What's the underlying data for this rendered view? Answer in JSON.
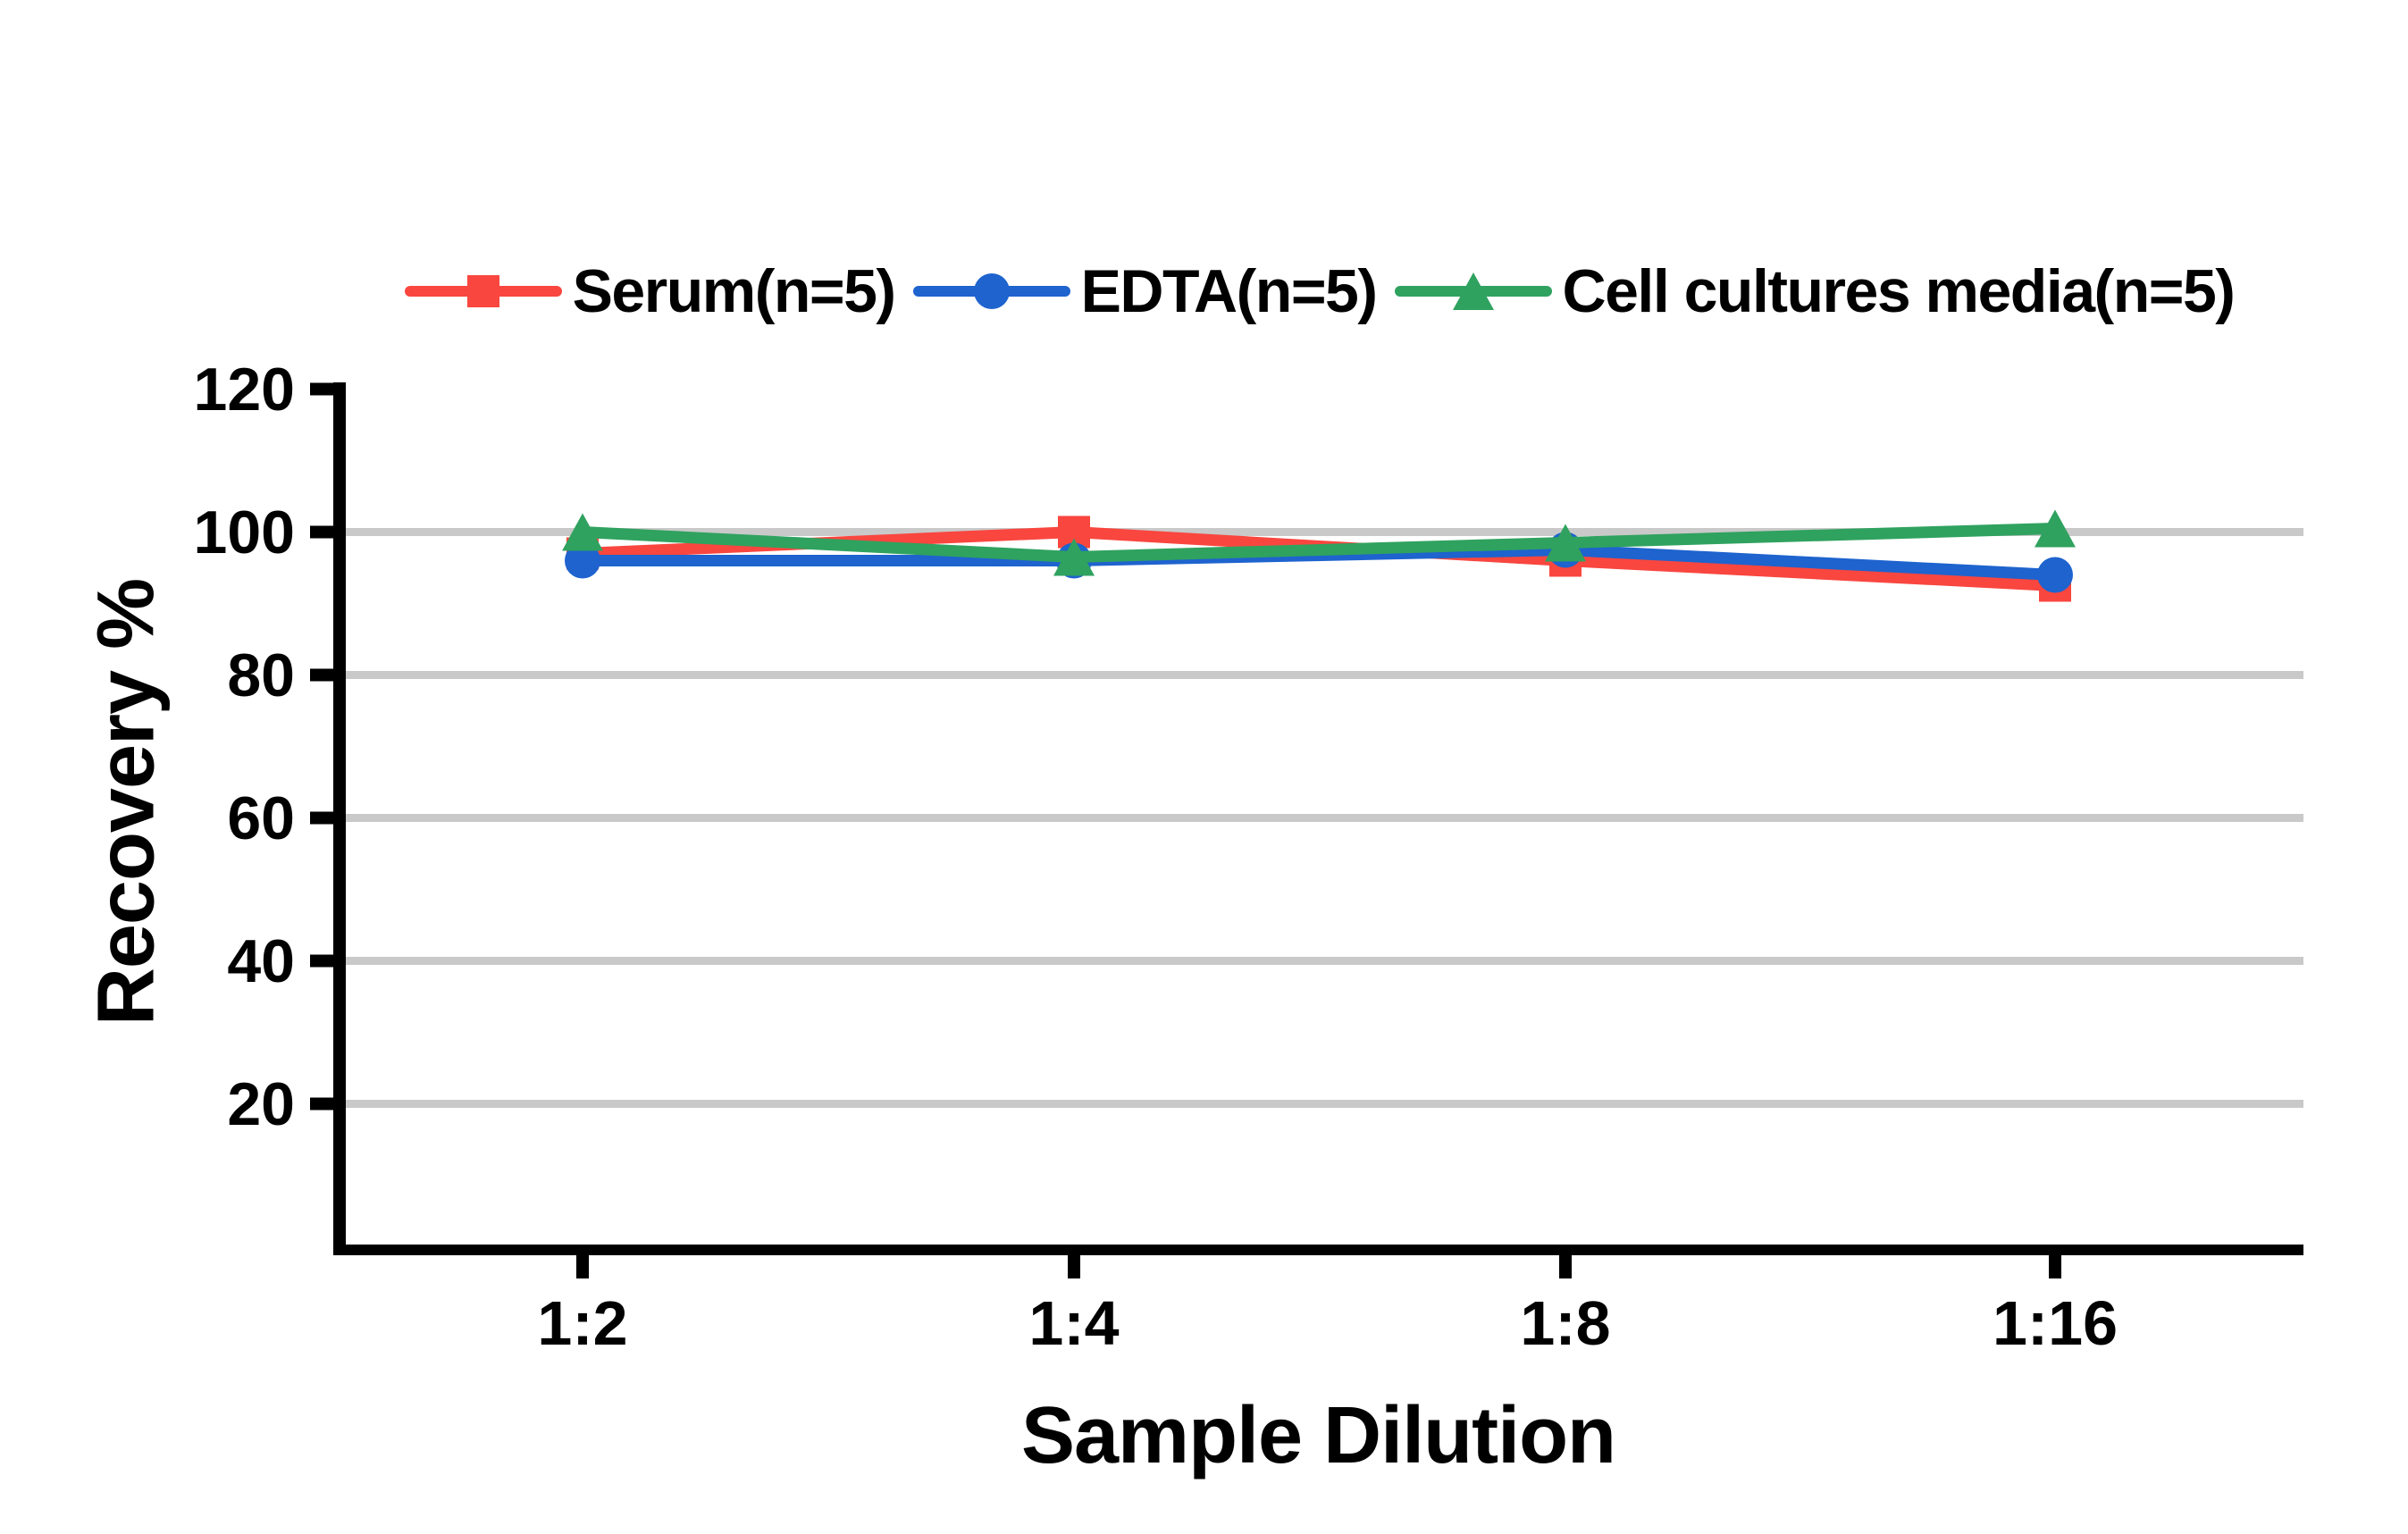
{
  "figure": {
    "x_axis_title": "Sample Dilution",
    "y_axis_title": "Recovery %"
  },
  "legend": {
    "items": [
      {
        "label": "Serum(n=5)",
        "marker": "square",
        "color": "#F9463F"
      },
      {
        "label": "EDTA(n=5)",
        "marker": "circle",
        "color": "#1E63CE"
      },
      {
        "label": "Cell cultures media(n=5)",
        "marker": "triangle",
        "color": "#2FA25F"
      }
    ]
  },
  "chart_data": {
    "type": "line",
    "title": "",
    "xlabel": "Sample Dilution",
    "ylabel": "Recovery %",
    "categories": [
      "1:2",
      "1:4",
      "1:8",
      "1:16"
    ],
    "series": [
      {
        "name": "Serum(n=5)",
        "marker": "square",
        "color": "#F9463F",
        "values": [
          97,
          100,
          96,
          92.5
        ]
      },
      {
        "name": "EDTA(n=5)",
        "marker": "circle",
        "color": "#1E63CE",
        "values": [
          96,
          96,
          97.5,
          94
        ]
      },
      {
        "name": "Cell cultures media(n=5)",
        "marker": "triangle",
        "color": "#2FA25F",
        "values": [
          100,
          96.5,
          98.5,
          100.5
        ]
      }
    ],
    "ylim": [
      0,
      120
    ],
    "y_ticks": [
      20,
      40,
      60,
      80,
      100,
      120
    ],
    "y_gridlines": [
      20,
      40,
      60,
      80,
      100
    ],
    "grid_on": true,
    "legend_position": "top"
  },
  "colors": {
    "background": "#ffffff",
    "axis": "#000000",
    "text": "#000000",
    "gridline": "#C9C9C9"
  }
}
